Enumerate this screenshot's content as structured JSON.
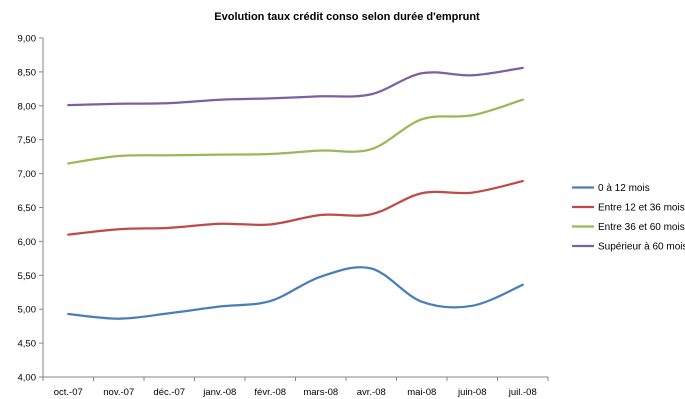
{
  "chart_data": {
    "type": "line",
    "title": "Evolution taux crédit conso selon durée d'emprunt",
    "xlabel": "",
    "ylabel": "",
    "categories": [
      "oct.-07",
      "nov.-07",
      "déc.-07",
      "janv.-08",
      "févr.-08",
      "mars-08",
      "avr.-08",
      "mai-08",
      "juin-08",
      "juil.-08"
    ],
    "ylim": [
      4.0,
      9.0
    ],
    "yticks": [
      "4,00",
      "4,50",
      "5,00",
      "5,50",
      "6,00",
      "6,50",
      "7,00",
      "7,50",
      "8,00",
      "8,50",
      "9,00"
    ],
    "grid": false,
    "smooth": true,
    "legend_position": "right",
    "series": [
      {
        "name": "0 à 12 mois",
        "color": "#4a7ebb",
        "values": [
          4.93,
          4.86,
          4.94,
          5.04,
          5.12,
          5.48,
          5.6,
          5.11,
          5.05,
          5.36
        ]
      },
      {
        "name": "Entre 12 et 36 mois",
        "color": "#be4b48",
        "values": [
          6.1,
          6.18,
          6.2,
          6.26,
          6.25,
          6.39,
          6.4,
          6.71,
          6.72,
          6.89
        ]
      },
      {
        "name": "Entre 36 et 60 mois",
        "color": "#98b954",
        "values": [
          7.15,
          7.26,
          7.27,
          7.28,
          7.29,
          7.34,
          7.36,
          7.8,
          7.86,
          8.09
        ]
      },
      {
        "name": "Supérieur à 60 mois",
        "color": "#7d60a0",
        "values": [
          8.01,
          8.03,
          8.04,
          8.09,
          8.11,
          8.14,
          8.17,
          8.48,
          8.45,
          8.56
        ]
      }
    ]
  }
}
